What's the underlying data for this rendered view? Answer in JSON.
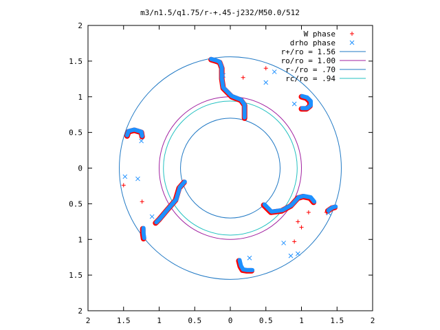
{
  "chart_data": {
    "type": "scatter",
    "title": "m3/n1.5/q1.75/r-+.45-j232/M50.0/512",
    "xlabel": "",
    "ylabel": "",
    "xlim": [
      -2,
      2
    ],
    "ylim": [
      -2,
      2
    ],
    "x_ticks": [
      -2,
      -1.5,
      -1,
      -0.5,
      0,
      0.5,
      1,
      1.5,
      2
    ],
    "y_ticks": [
      -2,
      -1.5,
      -1,
      -0.5,
      0,
      0.5,
      1,
      1.5,
      2
    ],
    "x_tick_labels": [
      "2",
      "1.5",
      "1",
      "0.5",
      "0",
      "0.5",
      "1",
      "1.5",
      "2"
    ],
    "y_tick_labels": [
      "2",
      "1.5",
      "1",
      "0.5",
      "0",
      "0.5",
      "1",
      "1.5",
      "2"
    ],
    "grid": false,
    "legend_position": "top-right",
    "legend": [
      {
        "label": "W phase",
        "kind": "marker",
        "marker": "+",
        "color": "#ff0000"
      },
      {
        "label": "drho phase",
        "kind": "marker",
        "marker": "x",
        "color": "#1e90ff"
      },
      {
        "label": "r+/ro = 1.56",
        "kind": "line",
        "color": "#1f78c4"
      },
      {
        "label": "ro/ro = 1.00",
        "kind": "line",
        "color": "#a020a0"
      },
      {
        "label": "r-/ro = .70",
        "kind": "line",
        "color": "#1f78c4"
      },
      {
        "label": "rc/ro = .94",
        "kind": "line",
        "color": "#20c0c0"
      }
    ],
    "circles": [
      {
        "name": "r+/ro = 1.56",
        "r": 1.56,
        "color": "#1f78c4"
      },
      {
        "name": "ro/ro = 1.00",
        "r": 1.0,
        "color": "#a020a0"
      },
      {
        "name": "r-/ro = .70",
        "r": 0.7,
        "color": "#1f78c4"
      },
      {
        "name": "rc/ro = .94",
        "r": 0.94,
        "color": "#20c0c0"
      }
    ],
    "series": [
      {
        "name": "W phase",
        "color": "#ff0000",
        "arms": [
          [
            [
              -0.27,
              1.52
            ],
            [
              -0.2,
              1.5
            ],
            [
              -0.15,
              1.48
            ],
            [
              -0.12,
              1.4
            ],
            [
              -0.12,
              1.25
            ],
            [
              -0.1,
              1.12
            ],
            [
              0.02,
              1.0
            ],
            [
              0.15,
              0.95
            ],
            [
              0.2,
              0.88
            ],
            [
              0.2,
              0.7
            ]
          ],
          [
            [
              1.0,
              1.0
            ],
            [
              1.07,
              0.98
            ],
            [
              1.12,
              0.93
            ],
            [
              1.12,
              0.87
            ],
            [
              1.07,
              0.83
            ],
            [
              1.0,
              0.83
            ]
          ],
          [
            [
              -1.45,
              0.45
            ],
            [
              -1.43,
              0.51
            ],
            [
              -1.35,
              0.53
            ],
            [
              -1.25,
              0.5
            ],
            [
              -1.24,
              0.44
            ]
          ],
          [
            [
              -0.65,
              -0.2
            ],
            [
              -0.72,
              -0.28
            ],
            [
              -0.77,
              -0.45
            ],
            [
              -0.9,
              -0.6
            ],
            [
              -1.0,
              -0.72
            ],
            [
              -1.05,
              -0.77
            ]
          ],
          [
            [
              0.47,
              -0.52
            ],
            [
              0.57,
              -0.62
            ],
            [
              0.72,
              -0.6
            ],
            [
              0.85,
              -0.53
            ],
            [
              0.95,
              -0.42
            ],
            [
              1.02,
              -0.4
            ],
            [
              1.12,
              -0.42
            ],
            [
              1.17,
              -0.48
            ]
          ],
          [
            [
              1.37,
              -0.6
            ],
            [
              1.43,
              -0.56
            ],
            [
              1.47,
              -0.55
            ]
          ],
          [
            [
              -1.23,
              -0.85
            ],
            [
              -1.23,
              -0.92
            ],
            [
              -1.22,
              -0.99
            ]
          ],
          [
            [
              0.12,
              -1.3
            ],
            [
              0.14,
              -1.38
            ],
            [
              0.17,
              -1.43
            ],
            [
              0.23,
              -1.44
            ],
            [
              0.3,
              -1.44
            ]
          ]
        ],
        "points": [
          [
            -1.5,
            -0.24
          ],
          [
            -1.24,
            -0.47
          ],
          [
            0.18,
            1.27
          ],
          [
            0.5,
            1.4
          ],
          [
            0.95,
            -0.75
          ],
          [
            1.0,
            -0.83
          ],
          [
            0.9,
            -1.03
          ],
          [
            1.1,
            -0.62
          ],
          [
            1.35,
            -0.62
          ]
        ]
      },
      {
        "name": "drho phase",
        "color": "#1e90ff",
        "arms": [
          [
            [
              -0.27,
              1.53
            ],
            [
              -0.2,
              1.51
            ],
            [
              -0.15,
              1.49
            ],
            [
              -0.12,
              1.41
            ],
            [
              -0.12,
              1.26
            ],
            [
              -0.1,
              1.13
            ],
            [
              0.02,
              1.01
            ],
            [
              0.15,
              0.96
            ],
            [
              0.2,
              0.89
            ],
            [
              0.2,
              0.71
            ]
          ],
          [
            [
              1.01,
              1.01
            ],
            [
              1.08,
              0.99
            ],
            [
              1.13,
              0.94
            ],
            [
              1.13,
              0.88
            ],
            [
              1.08,
              0.84
            ],
            [
              1.01,
              0.84
            ]
          ],
          [
            [
              -1.45,
              0.46
            ],
            [
              -1.43,
              0.52
            ],
            [
              -1.35,
              0.54
            ],
            [
              -1.25,
              0.51
            ],
            [
              -1.24,
              0.45
            ]
          ],
          [
            [
              -0.64,
              -0.19
            ],
            [
              -0.71,
              -0.27
            ],
            [
              -0.76,
              -0.44
            ],
            [
              -0.89,
              -0.59
            ],
            [
              -0.99,
              -0.71
            ],
            [
              -1.04,
              -0.76
            ]
          ],
          [
            [
              0.48,
              -0.51
            ],
            [
              0.58,
              -0.61
            ],
            [
              0.73,
              -0.59
            ],
            [
              0.86,
              -0.52
            ],
            [
              0.96,
              -0.41
            ],
            [
              1.03,
              -0.39
            ],
            [
              1.13,
              -0.41
            ],
            [
              1.18,
              -0.47
            ]
          ],
          [
            [
              1.38,
              -0.59
            ],
            [
              1.44,
              -0.55
            ],
            [
              1.48,
              -0.54
            ]
          ],
          [
            [
              -1.22,
              -0.84
            ],
            [
              -1.22,
              -0.91
            ],
            [
              -1.21,
              -0.98
            ]
          ],
          [
            [
              0.13,
              -1.29
            ],
            [
              0.15,
              -1.37
            ],
            [
              0.18,
              -1.42
            ],
            [
              0.24,
              -1.43
            ],
            [
              0.31,
              -1.43
            ]
          ]
        ],
        "points": [
          [
            0.5,
            1.2
          ],
          [
            0.62,
            1.35
          ],
          [
            0.9,
            0.9
          ],
          [
            -0.1,
            1.3
          ],
          [
            -1.48,
            -0.12
          ],
          [
            -1.3,
            -0.15
          ],
          [
            -1.1,
            -0.68
          ],
          [
            -1.25,
            0.38
          ],
          [
            0.27,
            -1.26
          ],
          [
            0.75,
            -1.05
          ],
          [
            0.85,
            -1.23
          ],
          [
            0.95,
            -1.2
          ],
          [
            1.38,
            -0.63
          ]
        ]
      }
    ]
  }
}
